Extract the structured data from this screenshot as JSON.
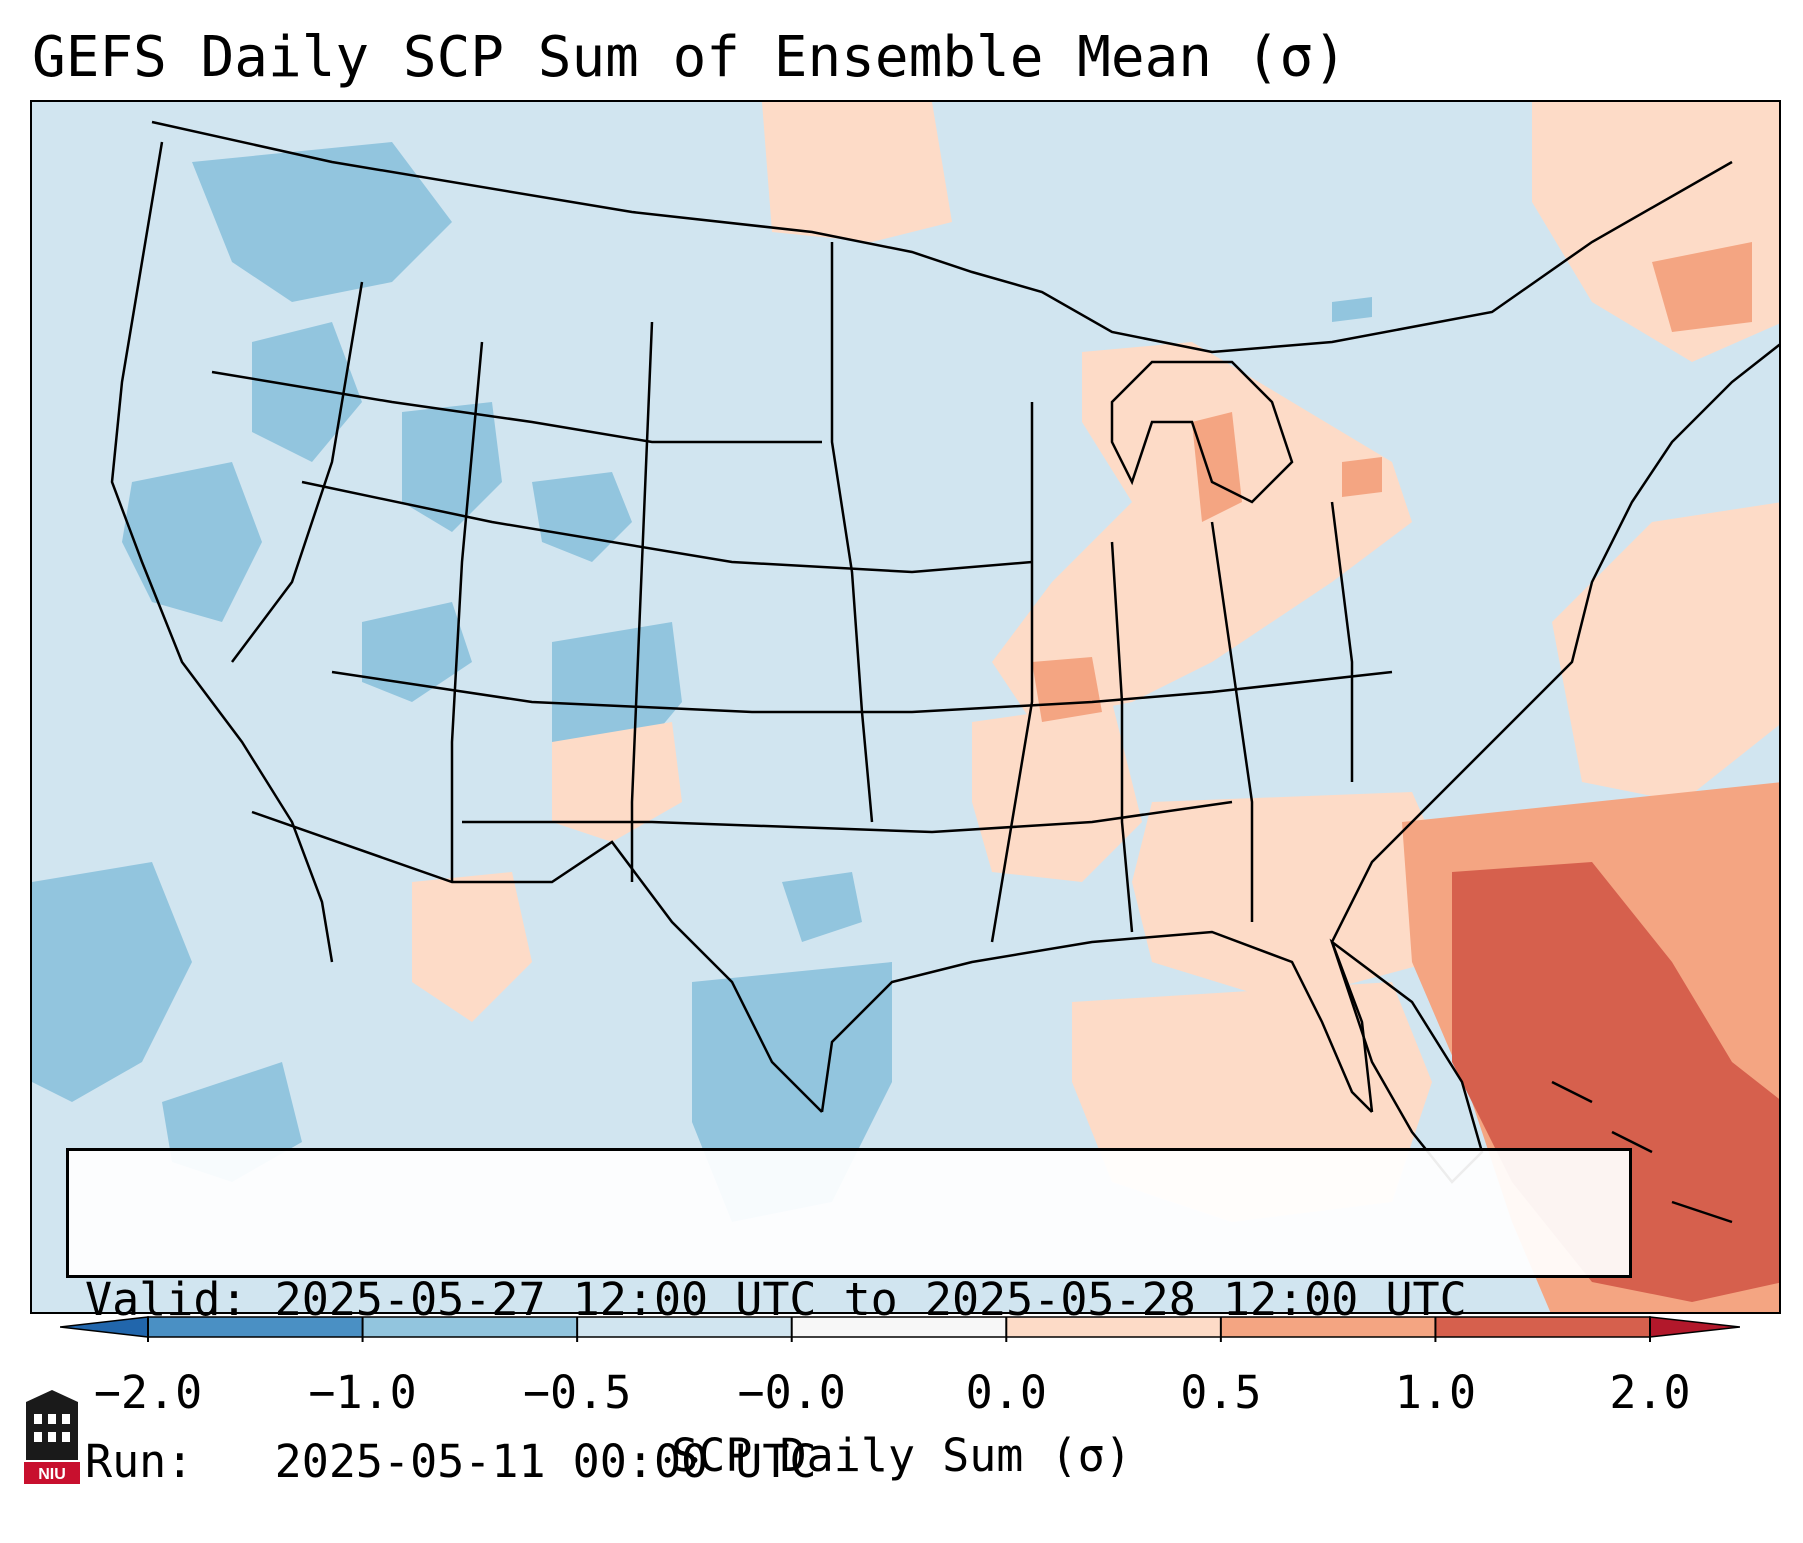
{
  "title": "GEFS Daily SCP Sum of Ensemble Mean (σ)",
  "info_box": {
    "valid_label": "Valid:",
    "valid_text": "2025-05-27 12:00 UTC to 2025-05-28 12:00 UTC",
    "run_label": "Run:",
    "run_text": "2025-05-11 00:00 UTC"
  },
  "colorbar": {
    "label": "SCP Daily Sum (σ)",
    "ticks": [
      "−2.0",
      "−1.0",
      "−0.5",
      "−0.0",
      "0.0",
      "0.5",
      "1.0",
      "2.0"
    ],
    "bins": [
      {
        "range": "-2.0 to -1.0",
        "color": "#4a90c4"
      },
      {
        "range": "-1.0 to -0.5",
        "color": "#92c5de"
      },
      {
        "range": "-0.5 to -0.0",
        "color": "#d1e5f0"
      },
      {
        "range": "-0.0 to 0.0",
        "color": "#f7f7f7"
      },
      {
        "range": "0.0 to 0.5",
        "color": "#fddbc7"
      },
      {
        "range": "0.5 to 1.0",
        "color": "#f4a582"
      },
      {
        "range": "1.0 to 2.0",
        "color": "#d6604d"
      }
    ],
    "extend_low_color": "#2166ac",
    "extend_high_color": "#b2182b"
  },
  "map": {
    "projection": "Lambert conformal over contiguous United States",
    "background_color": "#d1e5f0",
    "boundary_color": "#000000",
    "regions_positive": [
      "Florida peninsula and Bahamas (strongest)",
      "Gulf Coast",
      "Ohio Valley",
      "Tennessee Valley",
      "Lake Michigan",
      "Lake Erie",
      "Southern New England",
      "Atlantic waters"
    ],
    "regions_negative": [
      "Pacific Northwest",
      "Great Basin",
      "Central Rockies",
      "West and South Texas"
    ]
  },
  "logo": {
    "text": "NIU",
    "color": "#c8102e"
  }
}
